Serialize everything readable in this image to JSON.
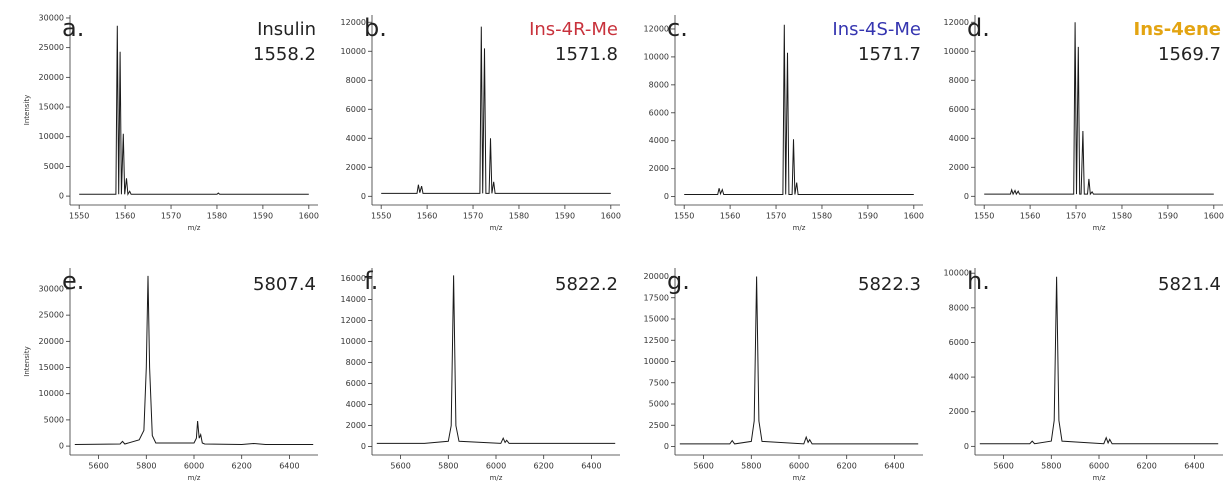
{
  "chart_data": [
    {
      "type": "line",
      "panel": "a.",
      "title": "Insulin",
      "title_color": "#222222",
      "annotation": "1558.2",
      "xlabel": "m/z",
      "ylabel": "Intensity",
      "x": [
        1550,
        1558,
        1558.3,
        1558.6,
        1558.9,
        1559.2,
        1559.6,
        1559.9,
        1560.3,
        1560.6,
        1561,
        1561.3,
        1580,
        1580.3,
        1580.6,
        1600
      ],
      "series": [
        {
          "color": "#1a1a1a",
          "values": [
            300,
            300,
            28700,
            300,
            24300,
            300,
            10500,
            300,
            3000,
            300,
            800,
            300,
            300,
            500,
            300,
            300
          ]
        }
      ],
      "xlim": [
        1548,
        1602
      ],
      "xticks": [
        1550,
        1560,
        1570,
        1580,
        1590,
        1600
      ],
      "ylim": [
        -1500,
        30500
      ],
      "yticks": [
        0,
        5000,
        10000,
        15000,
        20000,
        25000,
        30000
      ]
    },
    {
      "type": "line",
      "panel": "b.",
      "title": "Ins-4R-Me",
      "title_color": "#c8323c",
      "annotation": "1571.8",
      "xlabel": "m/z",
      "x": [
        1550,
        1557.8,
        1558.1,
        1558.4,
        1558.8,
        1559.1,
        1571.5,
        1571.8,
        1572.1,
        1572.5,
        1572.8,
        1573.5,
        1573.8,
        1574.1,
        1574.5,
        1574.8,
        1600
      ],
      "series": [
        {
          "color": "#1a1a1a",
          "values": [
            200,
            200,
            800,
            250,
            700,
            200,
            200,
            11700,
            200,
            10200,
            200,
            200,
            4000,
            200,
            1000,
            200,
            200
          ]
        }
      ],
      "xlim": [
        1548,
        1602
      ],
      "xticks": [
        1550,
        1560,
        1570,
        1580,
        1590,
        1600
      ],
      "ylim": [
        -600,
        12500
      ],
      "yticks": [
        0,
        2000,
        4000,
        6000,
        8000,
        10000,
        12000
      ]
    },
    {
      "type": "line",
      "panel": "c.",
      "title": "Ins-4S-Me",
      "title_color": "#3535b0",
      "annotation": "1571.7",
      "xlabel": "m/z",
      "x": [
        1550,
        1557.3,
        1557.6,
        1557.9,
        1558.3,
        1558.6,
        1571.5,
        1571.8,
        1572.1,
        1572.5,
        1572.8,
        1573.5,
        1573.8,
        1574.1,
        1574.5,
        1574.8,
        1600
      ],
      "series": [
        {
          "color": "#1a1a1a",
          "values": [
            150,
            150,
            600,
            200,
            500,
            150,
            150,
            12300,
            150,
            10300,
            150,
            150,
            4100,
            150,
            1000,
            150,
            150
          ]
        }
      ],
      "xlim": [
        1548,
        1602
      ],
      "xticks": [
        1550,
        1560,
        1570,
        1580,
        1590,
        1600
      ],
      "ylim": [
        -600,
        13000
      ],
      "yticks": [
        0,
        2000,
        4000,
        6000,
        8000,
        10000,
        12000
      ]
    },
    {
      "type": "line",
      "panel": "d.",
      "title": "Ins-4ene",
      "title_color": "#e3a412",
      "annotation": "1569.7",
      "xlabel": "m/z",
      "x": [
        1550,
        1555.7,
        1556,
        1556.3,
        1556.7,
        1557,
        1557.4,
        1557.7,
        1569.5,
        1569.8,
        1570.1,
        1570.5,
        1570.8,
        1571.1,
        1571.5,
        1571.8,
        1572.5,
        1572.8,
        1573.1,
        1573.5,
        1573.8,
        1600
      ],
      "series": [
        {
          "color": "#1a1a1a",
          "values": [
            150,
            150,
            450,
            150,
            400,
            150,
            350,
            150,
            150,
            12000,
            150,
            10300,
            150,
            150,
            4500,
            150,
            150,
            1200,
            150,
            300,
            150,
            150
          ]
        }
      ],
      "xlim": [
        1548,
        1602
      ],
      "xticks": [
        1550,
        1560,
        1570,
        1580,
        1590,
        1600
      ],
      "ylim": [
        -600,
        12500
      ],
      "yticks": [
        0,
        2000,
        4000,
        6000,
        8000,
        10000,
        12000
      ]
    },
    {
      "type": "line",
      "panel": "e.",
      "annotation": "5807.4",
      "xlabel": "m/z",
      "ylabel": "Intensity",
      "x": [
        5500,
        5690,
        5700,
        5710,
        5770,
        5790,
        5800,
        5807,
        5814,
        5825,
        5840,
        6000,
        6010,
        6015,
        6022,
        6028,
        6035,
        6045,
        6200,
        6250,
        6300,
        6500
      ],
      "series": [
        {
          "color": "#1a1a1a",
          "values": [
            300,
            400,
            900,
            400,
            1200,
            3000,
            15000,
            32500,
            15000,
            2000,
            600,
            600,
            1500,
            4800,
            1500,
            2200,
            600,
            400,
            300,
            500,
            300,
            300
          ]
        }
      ],
      "xlim": [
        5480,
        6520
      ],
      "xticks": [
        5600,
        5800,
        6000,
        6200,
        6400
      ],
      "ylim": [
        -1700,
        34000
      ],
      "yticks": [
        0,
        5000,
        10000,
        15000,
        20000,
        25000,
        30000
      ]
    },
    {
      "type": "line",
      "panel": "f.",
      "annotation": "5822.2",
      "xlabel": "m/z",
      "x": [
        5500,
        5700,
        5800,
        5812,
        5822,
        5832,
        5845,
        6020,
        6030,
        6038,
        6045,
        6055,
        6500
      ],
      "series": [
        {
          "color": "#1a1a1a",
          "values": [
            300,
            300,
            500,
            2000,
            16300,
            2000,
            500,
            300,
            800,
            400,
            600,
            300,
            300
          ]
        }
      ],
      "xlim": [
        5480,
        6520
      ],
      "xticks": [
        5600,
        5800,
        6000,
        6200,
        6400
      ],
      "ylim": [
        -800,
        17000
      ],
      "yticks": [
        0,
        2000,
        4000,
        6000,
        8000,
        10000,
        12000,
        14000,
        16000
      ]
    },
    {
      "type": "line",
      "panel": "g.",
      "annotation": "5822.3",
      "xlabel": "m/z",
      "x": [
        5500,
        5710,
        5720,
        5730,
        5800,
        5812,
        5822,
        5832,
        5845,
        6020,
        6030,
        6038,
        6045,
        6055,
        6500
      ],
      "series": [
        {
          "color": "#1a1a1a",
          "values": [
            300,
            300,
            700,
            300,
            600,
            3000,
            20000,
            3000,
            600,
            300,
            1100,
            500,
            800,
            300,
            300
          ]
        }
      ],
      "xlim": [
        5480,
        6520
      ],
      "xticks": [
        5600,
        5800,
        6000,
        6200,
        6400
      ],
      "ylim": [
        -1000,
        21000
      ],
      "yticks": [
        0,
        2500,
        5000,
        7500,
        10000,
        12500,
        15000,
        17500,
        20000
      ]
    },
    {
      "type": "line",
      "panel": "h.",
      "annotation": "5821.4",
      "xlabel": "m/z",
      "x": [
        5500,
        5710,
        5720,
        5730,
        5800,
        5812,
        5822,
        5832,
        5845,
        6020,
        6030,
        6038,
        6045,
        6055,
        6500
      ],
      "series": [
        {
          "color": "#1a1a1a",
          "values": [
            150,
            150,
            300,
            150,
            300,
            1500,
            9800,
            1500,
            300,
            150,
            500,
            200,
            400,
            150,
            150
          ]
        }
      ],
      "xlim": [
        5480,
        6520
      ],
      "xticks": [
        5600,
        5800,
        6000,
        6200,
        6400
      ],
      "ylim": [
        -500,
        10300
      ],
      "yticks": [
        0,
        2000,
        4000,
        6000,
        8000,
        10000
      ]
    }
  ]
}
